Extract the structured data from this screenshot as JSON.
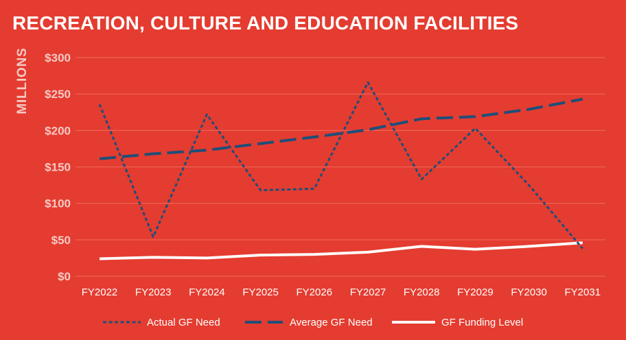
{
  "colors": {
    "background": "#e43c30",
    "grid": "#f06a5f",
    "need_series": "#1f4e79",
    "funding_series": "#ffffff"
  },
  "chart_data": {
    "type": "line",
    "title": "RECREATION, CULTURE AND EDUCATION FACILITIES",
    "ylabel": "MILLIONS",
    "xlabel": "",
    "categories": [
      "FY2022",
      "FY2023",
      "FY2024",
      "FY2025",
      "FY2026",
      "FY2027",
      "FY2028",
      "FY2029",
      "FY2030",
      "FY2031"
    ],
    "ylim": [
      0,
      300
    ],
    "yticks": [
      0,
      50,
      100,
      150,
      200,
      250,
      300
    ],
    "ytick_labels": [
      "$0",
      "$50",
      "$100",
      "$150",
      "$200",
      "$250",
      "$300"
    ],
    "grid": true,
    "legend_position": "bottom",
    "series": [
      {
        "name": "Actual GF Need",
        "style": "dotted",
        "color": "#1f4e79",
        "values": [
          236,
          54,
          222,
          118,
          120,
          266,
          133,
          203,
          125,
          38
        ]
      },
      {
        "name": "Average GF Need",
        "style": "dashed",
        "color": "#1f4e79",
        "values": [
          161,
          168,
          173,
          182,
          191,
          201,
          216,
          219,
          229,
          243
        ]
      },
      {
        "name": "GF Funding Level",
        "style": "solid",
        "color": "#ffffff",
        "values": [
          24,
          26,
          25,
          29,
          30,
          33,
          41,
          37,
          41,
          46
        ]
      }
    ]
  }
}
